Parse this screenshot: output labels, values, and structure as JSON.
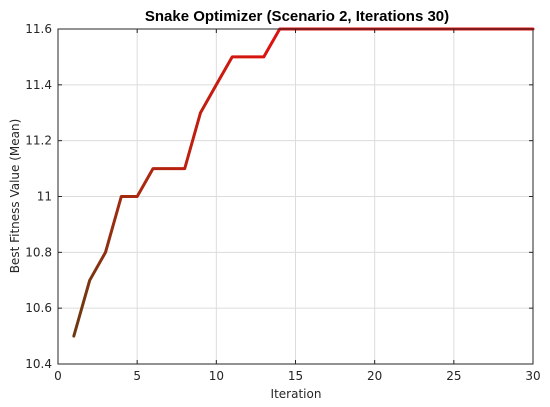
{
  "chart_data": {
    "type": "line",
    "title": "Snake Optimizer (Scenario 2, Iterations 30)",
    "xlabel": "Iteration",
    "ylabel": "Best Fitness Value (Mean)",
    "xlim": [
      0,
      30
    ],
    "ylim": [
      10.4,
      11.6
    ],
    "grid": true,
    "x_ticks": [
      0,
      5,
      10,
      15,
      20,
      25,
      30
    ],
    "x_tick_labels": [
      "0",
      "5",
      "10",
      "15",
      "20",
      "25",
      "30"
    ],
    "y_ticks": [
      10.4,
      10.6,
      10.8,
      11.0,
      11.2,
      11.4,
      11.6
    ],
    "y_tick_labels": [
      "10.4",
      "10.6",
      "10.8",
      "11",
      "11.2",
      "11.4",
      "11.6"
    ],
    "series": [
      {
        "color_start": "#6b3a12",
        "color_end": "#e01010",
        "x": [
          1,
          2,
          3,
          4,
          5,
          6,
          7,
          8,
          9,
          10,
          11,
          12,
          13,
          14,
          15,
          16,
          17,
          18,
          19,
          20,
          21,
          22,
          23,
          24,
          25,
          26,
          27,
          28,
          29,
          30
        ],
        "y": [
          10.5,
          10.7,
          10.8,
          11.0,
          11.0,
          11.1,
          11.1,
          11.1,
          11.3,
          11.4,
          11.5,
          11.5,
          11.5,
          11.6,
          11.6,
          11.6,
          11.6,
          11.6,
          11.6,
          11.6,
          11.6,
          11.6,
          11.6,
          11.6,
          11.6,
          11.6,
          11.6,
          11.6,
          11.6,
          11.6
        ]
      }
    ]
  }
}
